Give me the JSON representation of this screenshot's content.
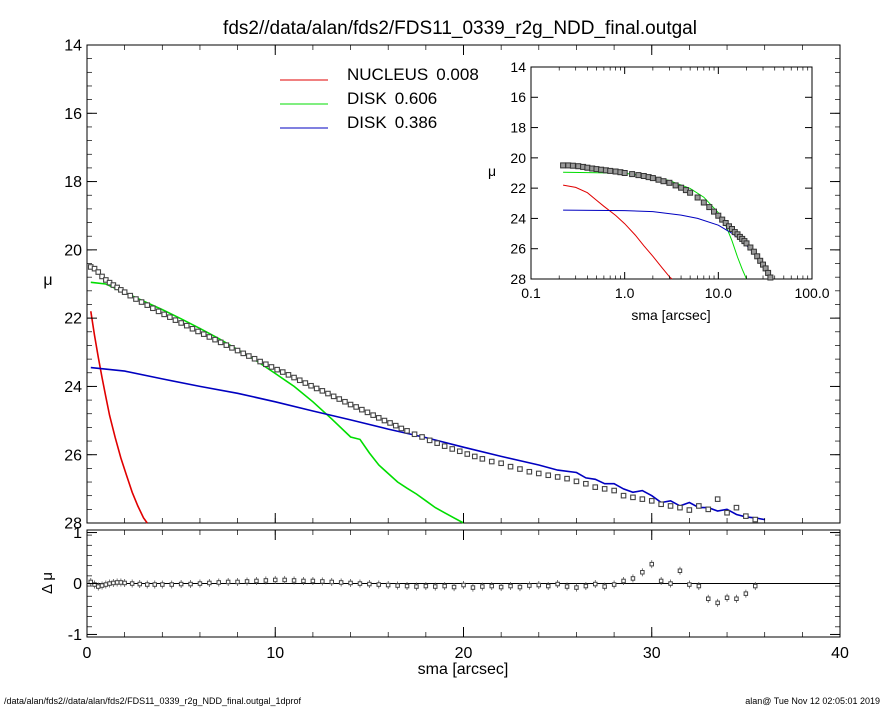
{
  "footer": {
    "left": "/data/alan/fds2//data/alan/fds2/FDS11_0339_r2g_NDD_final.outgal_1dprof",
    "right": "alan@  Tue Nov 12 02:05:01 2019"
  },
  "chart_data": [
    {
      "id": "main",
      "type": "scatter",
      "title": "fds2//data/alan/fds2/FDS11_0339_r2g_NDD_final.outgal",
      "xlabel": "",
      "ylabel": "μ",
      "xlim": [
        0,
        40
      ],
      "ylim": [
        28,
        14
      ],
      "y_inverted": true,
      "xticks": [
        0,
        10,
        20,
        30,
        40
      ],
      "xtick_labels": [
        "0",
        "10",
        "20",
        "30",
        "40"
      ],
      "yticks": [
        14,
        16,
        18,
        20,
        22,
        24,
        26,
        28
      ],
      "ytick_labels": [
        "14",
        "16",
        "18",
        "20",
        "22",
        "24",
        "26",
        "28"
      ],
      "legend_position": "top-center",
      "legend": [
        {
          "label": "NUCLEUS",
          "value": "0.008",
          "color": "#e00000"
        },
        {
          "label": "DISK",
          "value": "0.606",
          "color": "#00dd00"
        },
        {
          "label": "DISK",
          "value": "0.386",
          "color": "#0000c0"
        }
      ],
      "data_points": {
        "x": [
          0.2,
          0.4,
          0.6,
          0.8,
          1.0,
          1.2,
          1.4,
          1.6,
          1.8,
          2.0,
          2.3,
          2.6,
          2.9,
          3.2,
          3.5,
          3.8,
          4.1,
          4.4,
          4.7,
          5.0,
          5.3,
          5.6,
          5.9,
          6.2,
          6.5,
          6.8,
          7.1,
          7.4,
          7.7,
          8.0,
          8.3,
          8.6,
          8.9,
          9.2,
          9.5,
          9.8,
          10.1,
          10.4,
          10.7,
          11.0,
          11.3,
          11.6,
          11.9,
          12.2,
          12.5,
          12.8,
          13.1,
          13.4,
          13.7,
          14.0,
          14.3,
          14.6,
          14.9,
          15.2,
          15.5,
          15.8,
          16.1,
          16.4,
          16.7,
          17.0,
          17.4,
          17.8,
          18.2,
          18.6,
          19.0,
          19.4,
          19.8,
          20.2,
          20.6,
          21.0,
          21.5,
          22.0,
          22.5,
          23.0,
          23.5,
          24.0,
          24.5,
          25.0,
          25.5,
          26.0,
          26.5,
          27.0,
          27.5,
          28.0,
          28.5,
          29.0,
          29.5,
          30.0,
          30.5,
          31.0,
          31.5,
          32.0,
          32.5,
          33.0,
          33.5,
          34.0,
          34.5,
          35.0,
          35.5
        ],
        "y": [
          20.5,
          20.55,
          20.65,
          20.78,
          20.88,
          20.96,
          21.03,
          21.1,
          21.17,
          21.24,
          21.34,
          21.44,
          21.53,
          21.62,
          21.71,
          21.8,
          21.89,
          21.97,
          22.06,
          22.14,
          22.22,
          22.31,
          22.39,
          22.47,
          22.55,
          22.63,
          22.71,
          22.79,
          22.87,
          22.95,
          23.03,
          23.11,
          23.19,
          23.27,
          23.35,
          23.43,
          23.51,
          23.58,
          23.66,
          23.74,
          23.82,
          23.9,
          23.98,
          24.06,
          24.13,
          24.21,
          24.29,
          24.37,
          24.45,
          24.53,
          24.6,
          24.68,
          24.76,
          24.84,
          24.92,
          25.0,
          25.07,
          25.15,
          25.23,
          25.3,
          25.4,
          25.48,
          25.58,
          25.66,
          25.75,
          25.83,
          25.9,
          25.98,
          26.05,
          26.12,
          26.2,
          26.25,
          26.35,
          26.42,
          26.5,
          26.55,
          26.6,
          26.65,
          26.7,
          26.78,
          26.85,
          26.95,
          27.0,
          27.05,
          27.2,
          27.25,
          27.3,
          27.35,
          27.45,
          27.5,
          27.55,
          27.62,
          27.5,
          27.6,
          27.3,
          27.7,
          27.55,
          27.8,
          27.9
        ]
      },
      "model_curves": [
        {
          "name": "NUCLEUS",
          "color": "#e00000",
          "x": [
            0.2,
            0.4,
            0.6,
            0.8,
            1.0,
            1.2,
            1.5,
            1.8,
            2.1,
            2.4,
            2.7,
            3.0,
            3.2
          ],
          "y": [
            21.8,
            22.5,
            23.15,
            23.75,
            24.3,
            24.85,
            25.5,
            26.1,
            26.6,
            27.1,
            27.5,
            27.85,
            28.0
          ]
        },
        {
          "name": "DISK",
          "color": "#00dd00",
          "x": [
            0.2,
            1,
            2,
            3,
            4,
            5,
            6,
            7,
            8,
            9,
            10,
            11,
            12,
            13,
            14,
            14.5,
            15,
            15.5,
            16,
            16.5,
            17,
            17.5,
            18,
            18.5,
            19,
            19.5,
            20
          ],
          "y": [
            20.95,
            21.0,
            21.25,
            21.5,
            21.75,
            22.02,
            22.3,
            22.6,
            22.92,
            23.25,
            23.62,
            24.0,
            24.45,
            24.95,
            25.48,
            25.55,
            25.95,
            26.3,
            26.55,
            26.8,
            26.98,
            27.15,
            27.35,
            27.55,
            27.7,
            27.85,
            28.0
          ]
        },
        {
          "name": "DISK",
          "color": "#0000c0",
          "x": [
            0.2,
            2,
            4,
            6,
            8,
            10,
            12,
            14,
            16,
            18,
            20,
            22,
            24,
            25,
            26,
            26.5,
            27,
            27.5,
            28,
            28.5,
            29,
            29.5,
            30,
            30.5,
            31,
            31.5,
            32,
            32.5,
            33,
            33.5,
            34,
            34.5,
            35,
            35.5,
            36
          ],
          "y": [
            23.45,
            23.55,
            23.78,
            24.0,
            24.2,
            24.45,
            24.72,
            24.98,
            25.25,
            25.5,
            25.78,
            26.05,
            26.3,
            26.45,
            26.52,
            26.68,
            26.72,
            26.85,
            26.85,
            27.0,
            27.1,
            27.05,
            27.2,
            27.4,
            27.35,
            27.5,
            27.4,
            27.55,
            27.55,
            27.65,
            27.6,
            27.75,
            27.82,
            27.85,
            27.9
          ]
        }
      ]
    },
    {
      "id": "inset",
      "type": "scatter",
      "title": "",
      "xlabel": "sma [arcsec]",
      "ylabel": "μ",
      "x_scale": "log",
      "xlim": [
        0.1,
        100
      ],
      "ylim": [
        28,
        14
      ],
      "y_inverted": true,
      "xticks": [
        0.1,
        1,
        10,
        100
      ],
      "xtick_labels": [
        "0.1",
        "1.0",
        "10.0",
        "100.0"
      ],
      "yticks": [
        14,
        16,
        18,
        20,
        22,
        24,
        26,
        28
      ],
      "ytick_labels": [
        "14",
        "16",
        "18",
        "20",
        "22",
        "24",
        "26",
        "28"
      ],
      "data_points": {
        "x": [
          0.22,
          0.25,
          0.28,
          0.32,
          0.36,
          0.4,
          0.45,
          0.5,
          0.56,
          0.63,
          0.7,
          0.8,
          0.9,
          1.0,
          1.2,
          1.4,
          1.6,
          1.8,
          2.0,
          2.3,
          2.6,
          3.0,
          3.5,
          4.0,
          4.5,
          5.0,
          6.0,
          7.0,
          8.0,
          9.0,
          10,
          11,
          12,
          13,
          14,
          15,
          16,
          17,
          18,
          19,
          20,
          22,
          24,
          26,
          28,
          30,
          32,
          34,
          36
        ],
        "y": [
          20.5,
          20.5,
          20.52,
          20.55,
          20.6,
          20.65,
          20.7,
          20.74,
          20.78,
          20.82,
          20.86,
          20.9,
          20.95,
          21.0,
          21.07,
          21.14,
          21.2,
          21.27,
          21.34,
          21.44,
          21.54,
          21.65,
          21.82,
          21.97,
          22.13,
          22.3,
          22.62,
          22.95,
          23.25,
          23.55,
          23.82,
          24.08,
          24.3,
          24.52,
          24.7,
          24.9,
          25.05,
          25.22,
          25.35,
          25.5,
          25.65,
          25.92,
          26.2,
          26.5,
          26.8,
          27.05,
          27.3,
          27.6,
          27.9
        ]
      },
      "model_curves": [
        {
          "name": "NUCLEUS",
          "color": "#e00000",
          "x": [
            0.22,
            0.3,
            0.4,
            0.5,
            0.6,
            0.8,
            1.0,
            1.3,
            1.6,
            2.0,
            2.5,
            3.0,
            3.2
          ],
          "y": [
            21.8,
            21.95,
            22.3,
            22.8,
            23.2,
            23.8,
            24.35,
            25.1,
            25.8,
            26.5,
            27.25,
            27.85,
            28.0
          ]
        },
        {
          "name": "DISK",
          "color": "#00dd00",
          "x": [
            0.22,
            0.5,
            1,
            2,
            3,
            5,
            7,
            10,
            12,
            14,
            16,
            18,
            20
          ],
          "y": [
            20.95,
            20.98,
            21.02,
            21.25,
            21.5,
            22.02,
            22.6,
            23.62,
            24.45,
            25.48,
            26.55,
            27.35,
            28.0
          ]
        },
        {
          "name": "DISK",
          "color": "#0000c0",
          "x": [
            0.22,
            1,
            2,
            4,
            6,
            10,
            14,
            18,
            22,
            26,
            30,
            34,
            36
          ],
          "y": [
            23.45,
            23.48,
            23.55,
            23.78,
            24.0,
            24.45,
            24.98,
            25.5,
            26.05,
            26.52,
            27.2,
            27.6,
            27.9
          ]
        }
      ]
    },
    {
      "id": "residual",
      "type": "scatter",
      "title": "",
      "xlabel": "sma [arcsec]",
      "ylabel": "Δ μ",
      "xlim": [
        0,
        40
      ],
      "ylim": [
        -1.05,
        1.05
      ],
      "xticks": [
        0,
        10,
        20,
        30,
        40
      ],
      "xtick_labels": [
        "0",
        "10",
        "20",
        "30",
        "40"
      ],
      "yticks": [
        -1,
        0,
        1
      ],
      "ytick_labels": [
        "-1",
        "0",
        "1"
      ],
      "data_points": {
        "x": [
          0.2,
          0.4,
          0.6,
          0.8,
          1.0,
          1.2,
          1.4,
          1.6,
          1.8,
          2.0,
          2.4,
          2.8,
          3.2,
          3.6,
          4.0,
          4.5,
          5.0,
          5.5,
          6.0,
          6.5,
          7.0,
          7.5,
          8.0,
          8.5,
          9.0,
          9.5,
          10.0,
          10.5,
          11.0,
          11.5,
          12.0,
          12.5,
          13.0,
          13.5,
          14.0,
          14.5,
          15.0,
          15.5,
          16.0,
          16.5,
          17.0,
          17.5,
          18.0,
          18.5,
          19.0,
          19.5,
          20.0,
          20.5,
          21.0,
          21.5,
          22.0,
          22.5,
          23.0,
          23.5,
          24.0,
          24.5,
          25.0,
          25.5,
          26.0,
          26.5,
          27.0,
          27.5,
          28.0,
          28.5,
          29.0,
          29.5,
          30.0,
          30.5,
          31.0,
          31.5,
          32.0,
          32.5,
          33.0,
          33.5,
          34.0,
          34.5,
          35.0,
          35.5
        ],
        "y": [
          0.03,
          -0.02,
          -0.06,
          -0.04,
          -0.02,
          0.0,
          0.01,
          0.02,
          0.02,
          0.01,
          0.0,
          -0.01,
          -0.02,
          -0.02,
          -0.02,
          -0.02,
          -0.01,
          -0.01,
          0.0,
          0.01,
          0.02,
          0.03,
          0.03,
          0.04,
          0.05,
          0.06,
          0.07,
          0.07,
          0.06,
          0.05,
          0.05,
          0.04,
          0.03,
          0.02,
          0.01,
          0.0,
          -0.01,
          -0.02,
          -0.03,
          -0.04,
          -0.05,
          -0.06,
          -0.05,
          -0.06,
          -0.05,
          -0.07,
          -0.03,
          -0.08,
          -0.06,
          -0.05,
          -0.07,
          -0.05,
          -0.07,
          -0.04,
          -0.03,
          -0.05,
          -0.01,
          -0.06,
          -0.08,
          -0.05,
          -0.01,
          -0.06,
          -0.02,
          0.05,
          0.1,
          0.22,
          0.38,
          0.05,
          0.0,
          0.25,
          -0.02,
          -0.05,
          -0.3,
          -0.38,
          -0.28,
          -0.3,
          -0.2,
          -0.05
        ]
      },
      "reference_line": 0
    }
  ]
}
